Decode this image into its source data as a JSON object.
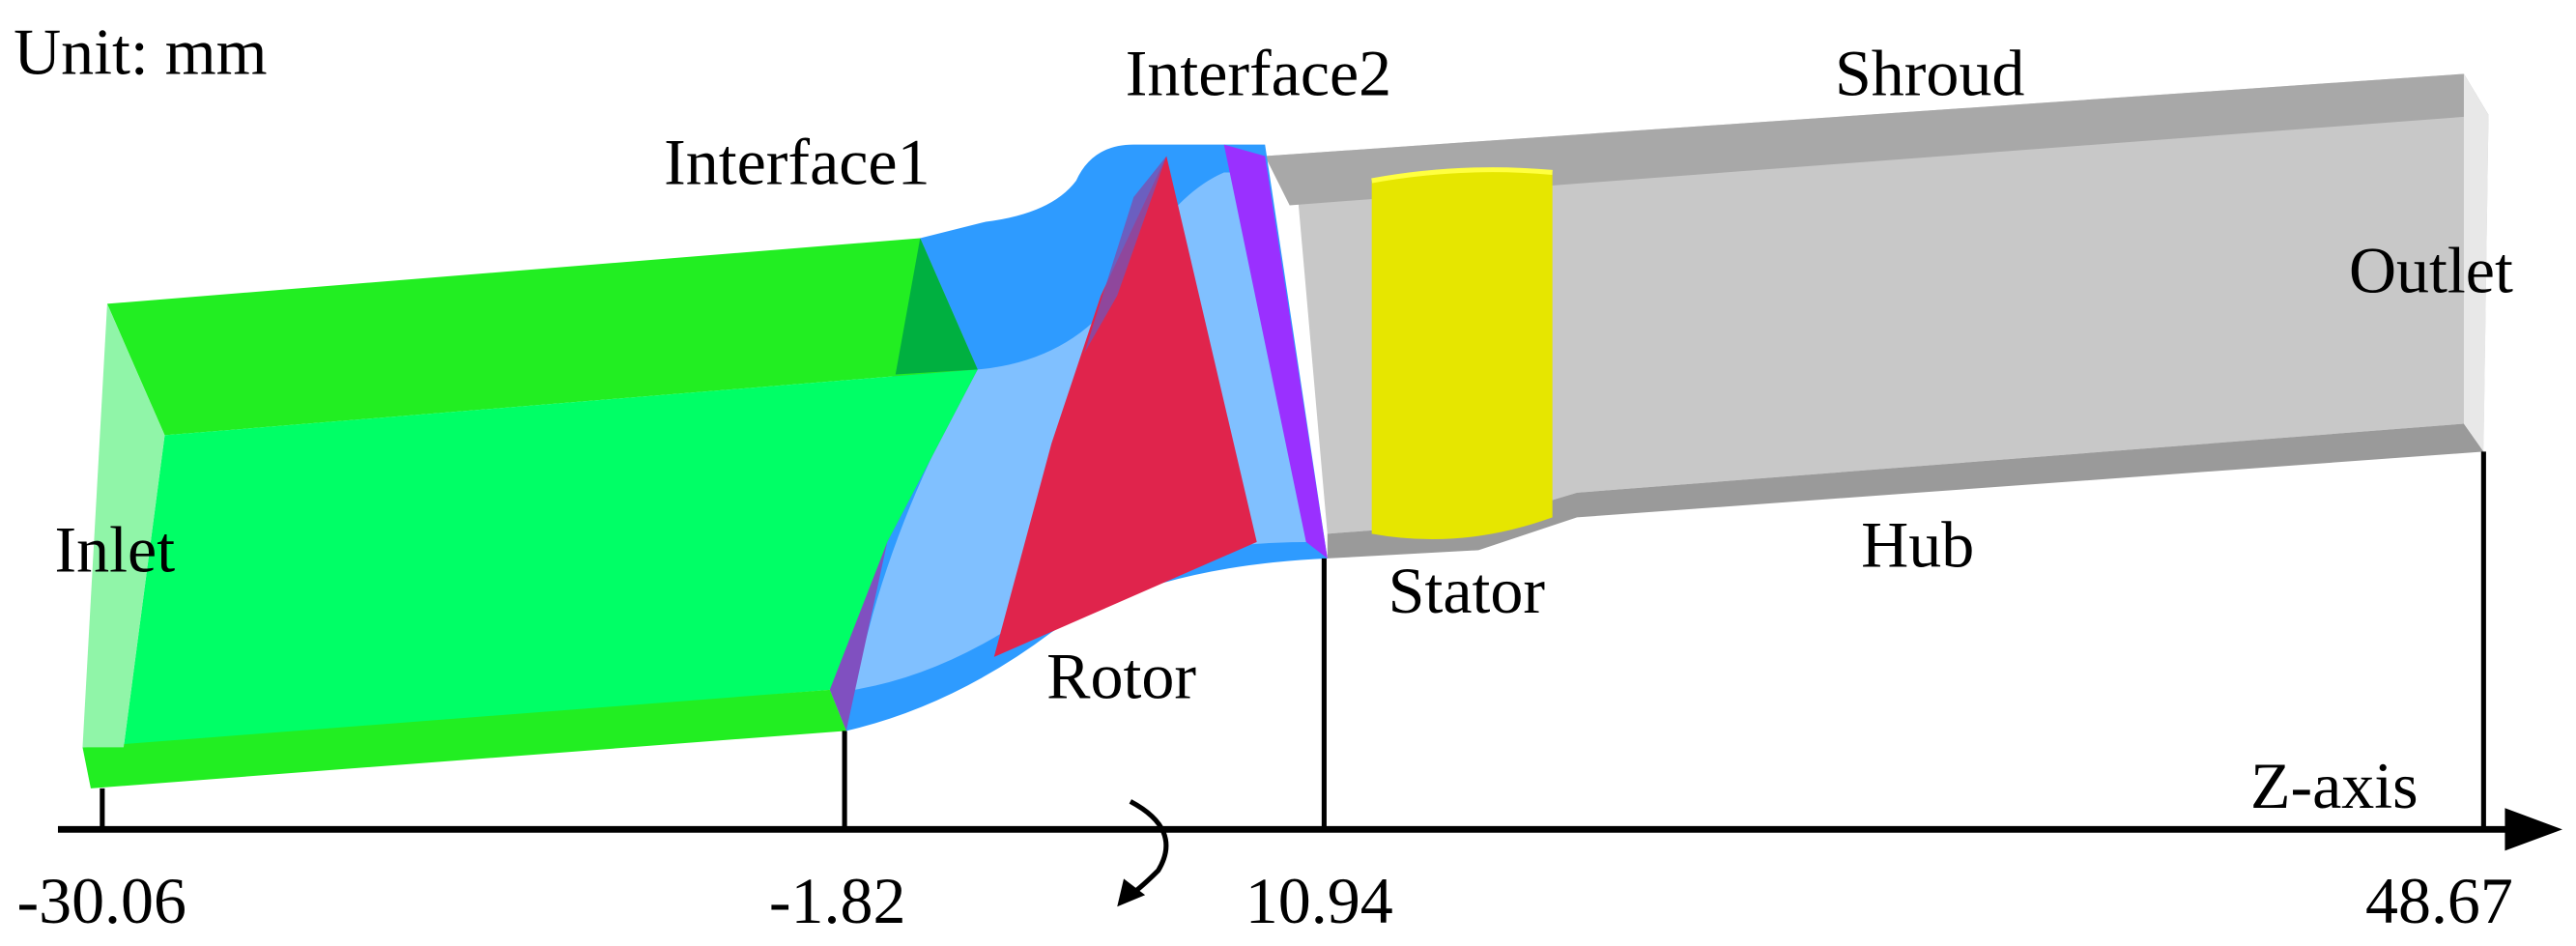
{
  "unit": "Unit: mm",
  "regions": {
    "inlet": "Inlet",
    "interface1": "Interface1",
    "interface2": "Interface2",
    "shroud": "Shroud",
    "outlet": "Outlet",
    "stator": "Stator",
    "hub": "Hub",
    "rotor": "Rotor"
  },
  "axis": {
    "label": "Z-axis",
    "ticks": [
      "-30.06",
      "-1.82",
      "10.94",
      "48.67"
    ]
  }
}
